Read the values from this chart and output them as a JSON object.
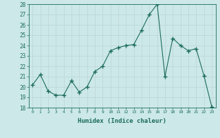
{
  "x": [
    0,
    1,
    2,
    3,
    4,
    5,
    6,
    7,
    8,
    9,
    10,
    11,
    12,
    13,
    14,
    15,
    16,
    17,
    18,
    19,
    20,
    21,
    22,
    23
  ],
  "y": [
    20.2,
    21.2,
    19.6,
    19.2,
    19.2,
    20.6,
    19.5,
    20.0,
    21.5,
    22.0,
    23.5,
    23.8,
    24.0,
    24.1,
    25.5,
    27.0,
    28.0,
    21.0,
    24.7,
    24.0,
    23.5,
    23.7,
    21.1,
    18.1
  ],
  "ylim": [
    18,
    28
  ],
  "yticks": [
    18,
    19,
    20,
    21,
    22,
    23,
    24,
    25,
    26,
    27,
    28
  ],
  "xticks": [
    0,
    1,
    2,
    3,
    4,
    5,
    6,
    7,
    8,
    9,
    10,
    11,
    12,
    13,
    14,
    15,
    16,
    17,
    18,
    19,
    20,
    21,
    22,
    23
  ],
  "xlabel": "Humidex (Indice chaleur)",
  "line_color": "#1a6b5a",
  "marker": "+",
  "marker_size": 4,
  "bg_color": "#cce8e8",
  "grid_color": "#c0d8d8",
  "tick_color": "#1a6b5a"
}
